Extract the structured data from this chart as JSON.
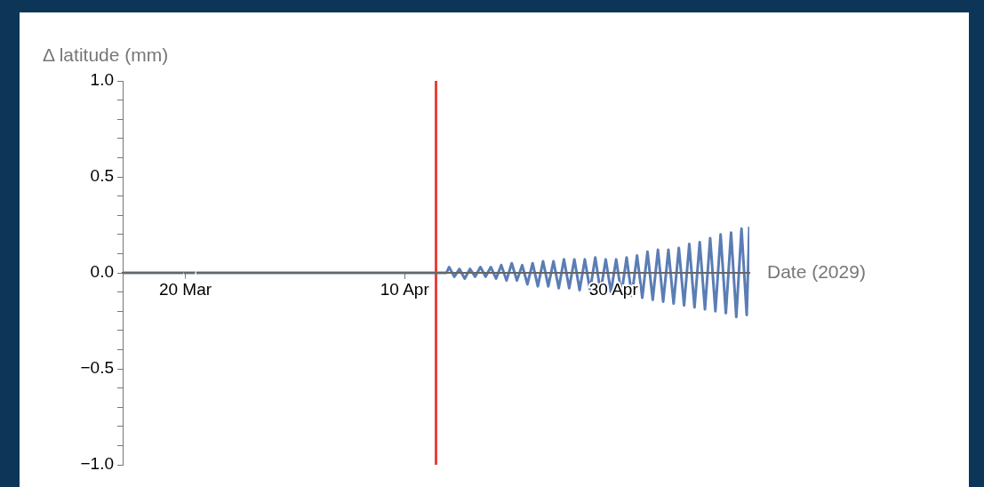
{
  "chart_data": {
    "type": "line",
    "xlabel": "Date (2029)",
    "ylabel": "Δ latitude (mm)",
    "xlim": [
      "2029-03-14",
      "2029-05-13"
    ],
    "xticks": [
      {
        "value": "2029-03-20",
        "label": "20 Mar"
      },
      {
        "value": "2029-04-10",
        "label": "10 Apr"
      },
      {
        "value": "2029-04-30",
        "label": "30 Apr"
      }
    ],
    "ylim": [
      -1,
      1
    ],
    "yticks": [
      {
        "value": -1,
        "label": "−1.0"
      },
      {
        "value": -0.9,
        "label": null
      },
      {
        "value": -0.8,
        "label": null
      },
      {
        "value": -0.7,
        "label": null
      },
      {
        "value": -0.6,
        "label": null
      },
      {
        "value": -0.5,
        "label": "−0.5"
      },
      {
        "value": -0.4,
        "label": null
      },
      {
        "value": -0.3,
        "label": null
      },
      {
        "value": -0.2,
        "label": null
      },
      {
        "value": -0.1,
        "label": null
      },
      {
        "value": 0,
        "label": "0.0"
      },
      {
        "value": 0.1,
        "label": null
      },
      {
        "value": 0.2,
        "label": null
      },
      {
        "value": 0.3,
        "label": null
      },
      {
        "value": 0.4,
        "label": null
      },
      {
        "value": 0.5,
        "label": "0.5"
      },
      {
        "value": 0.6,
        "label": null
      },
      {
        "value": 0.7,
        "label": null
      },
      {
        "value": 0.8,
        "label": null
      },
      {
        "value": 0.9,
        "label": null
      },
      {
        "value": 1,
        "label": "1.0"
      }
    ],
    "marker": "none",
    "ref_lines": [
      {
        "axis": "x",
        "value": "2029-04-13",
        "color": "#e8403a"
      }
    ],
    "series": [
      {
        "color": "#5b7db5",
        "x": [
          "2029-03-14",
          "2029-04-14T00:00",
          "2029-04-14T06:00",
          "2029-04-14T18:00",
          "2029-04-15T06:00",
          "2029-04-15T18:00",
          "2029-04-16T06:00",
          "2029-04-16T18:00",
          "2029-04-17T06:00",
          "2029-04-17T18:00",
          "2029-04-18T06:00",
          "2029-04-18T18:00",
          "2029-04-19T06:00",
          "2029-04-19T18:00",
          "2029-04-20T06:00",
          "2029-04-20T18:00",
          "2029-04-21T06:00",
          "2029-04-21T18:00",
          "2029-04-22T06:00",
          "2029-04-22T18:00",
          "2029-04-23T06:00",
          "2029-04-23T18:00",
          "2029-04-24T06:00",
          "2029-04-24T18:00",
          "2029-04-25T06:00",
          "2029-04-25T18:00",
          "2029-04-26T06:00",
          "2029-04-26T18:00",
          "2029-04-27T06:00",
          "2029-04-27T18:00",
          "2029-04-28T06:00",
          "2029-04-28T18:00",
          "2029-04-29T06:00",
          "2029-04-29T18:00",
          "2029-04-30T06:00",
          "2029-04-30T18:00",
          "2029-05-01T06:00",
          "2029-05-01T18:00",
          "2029-05-02T06:00",
          "2029-05-02T18:00",
          "2029-05-03T06:00",
          "2029-05-03T18:00",
          "2029-05-04T06:00",
          "2029-05-04T18:00",
          "2029-05-05T06:00",
          "2029-05-05T18:00",
          "2029-05-06T06:00",
          "2029-05-06T18:00",
          "2029-05-07T06:00",
          "2029-05-07T18:00",
          "2029-05-08T06:00",
          "2029-05-08T18:00",
          "2029-05-09T06:00",
          "2029-05-09T18:00",
          "2029-05-10T06:00",
          "2029-05-10T18:00",
          "2029-05-11T06:00",
          "2029-05-11T18:00",
          "2029-05-12T06:00",
          "2029-05-12T18:00",
          "2029-05-13T00:00"
        ],
        "values": [
          0,
          0,
          0.03,
          -0.02,
          0.02,
          -0.03,
          0.02,
          -0.02,
          0.03,
          -0.02,
          0.03,
          -0.03,
          0.04,
          -0.04,
          0.05,
          -0.04,
          0.04,
          -0.06,
          0.05,
          -0.07,
          0.06,
          -0.07,
          0.06,
          -0.08,
          0.07,
          -0.08,
          0.07,
          -0.09,
          0.07,
          -0.09,
          0.08,
          -0.1,
          0.07,
          -0.1,
          0.07,
          -0.11,
          0.08,
          -0.12,
          0.09,
          -0.13,
          0.11,
          -0.14,
          0.12,
          -0.15,
          0.12,
          -0.16,
          0.13,
          -0.17,
          0.15,
          -0.18,
          0.16,
          -0.19,
          0.18,
          -0.2,
          0.2,
          -0.21,
          0.21,
          -0.23,
          0.23,
          -0.22,
          0.24
        ]
      }
    ]
  }
}
